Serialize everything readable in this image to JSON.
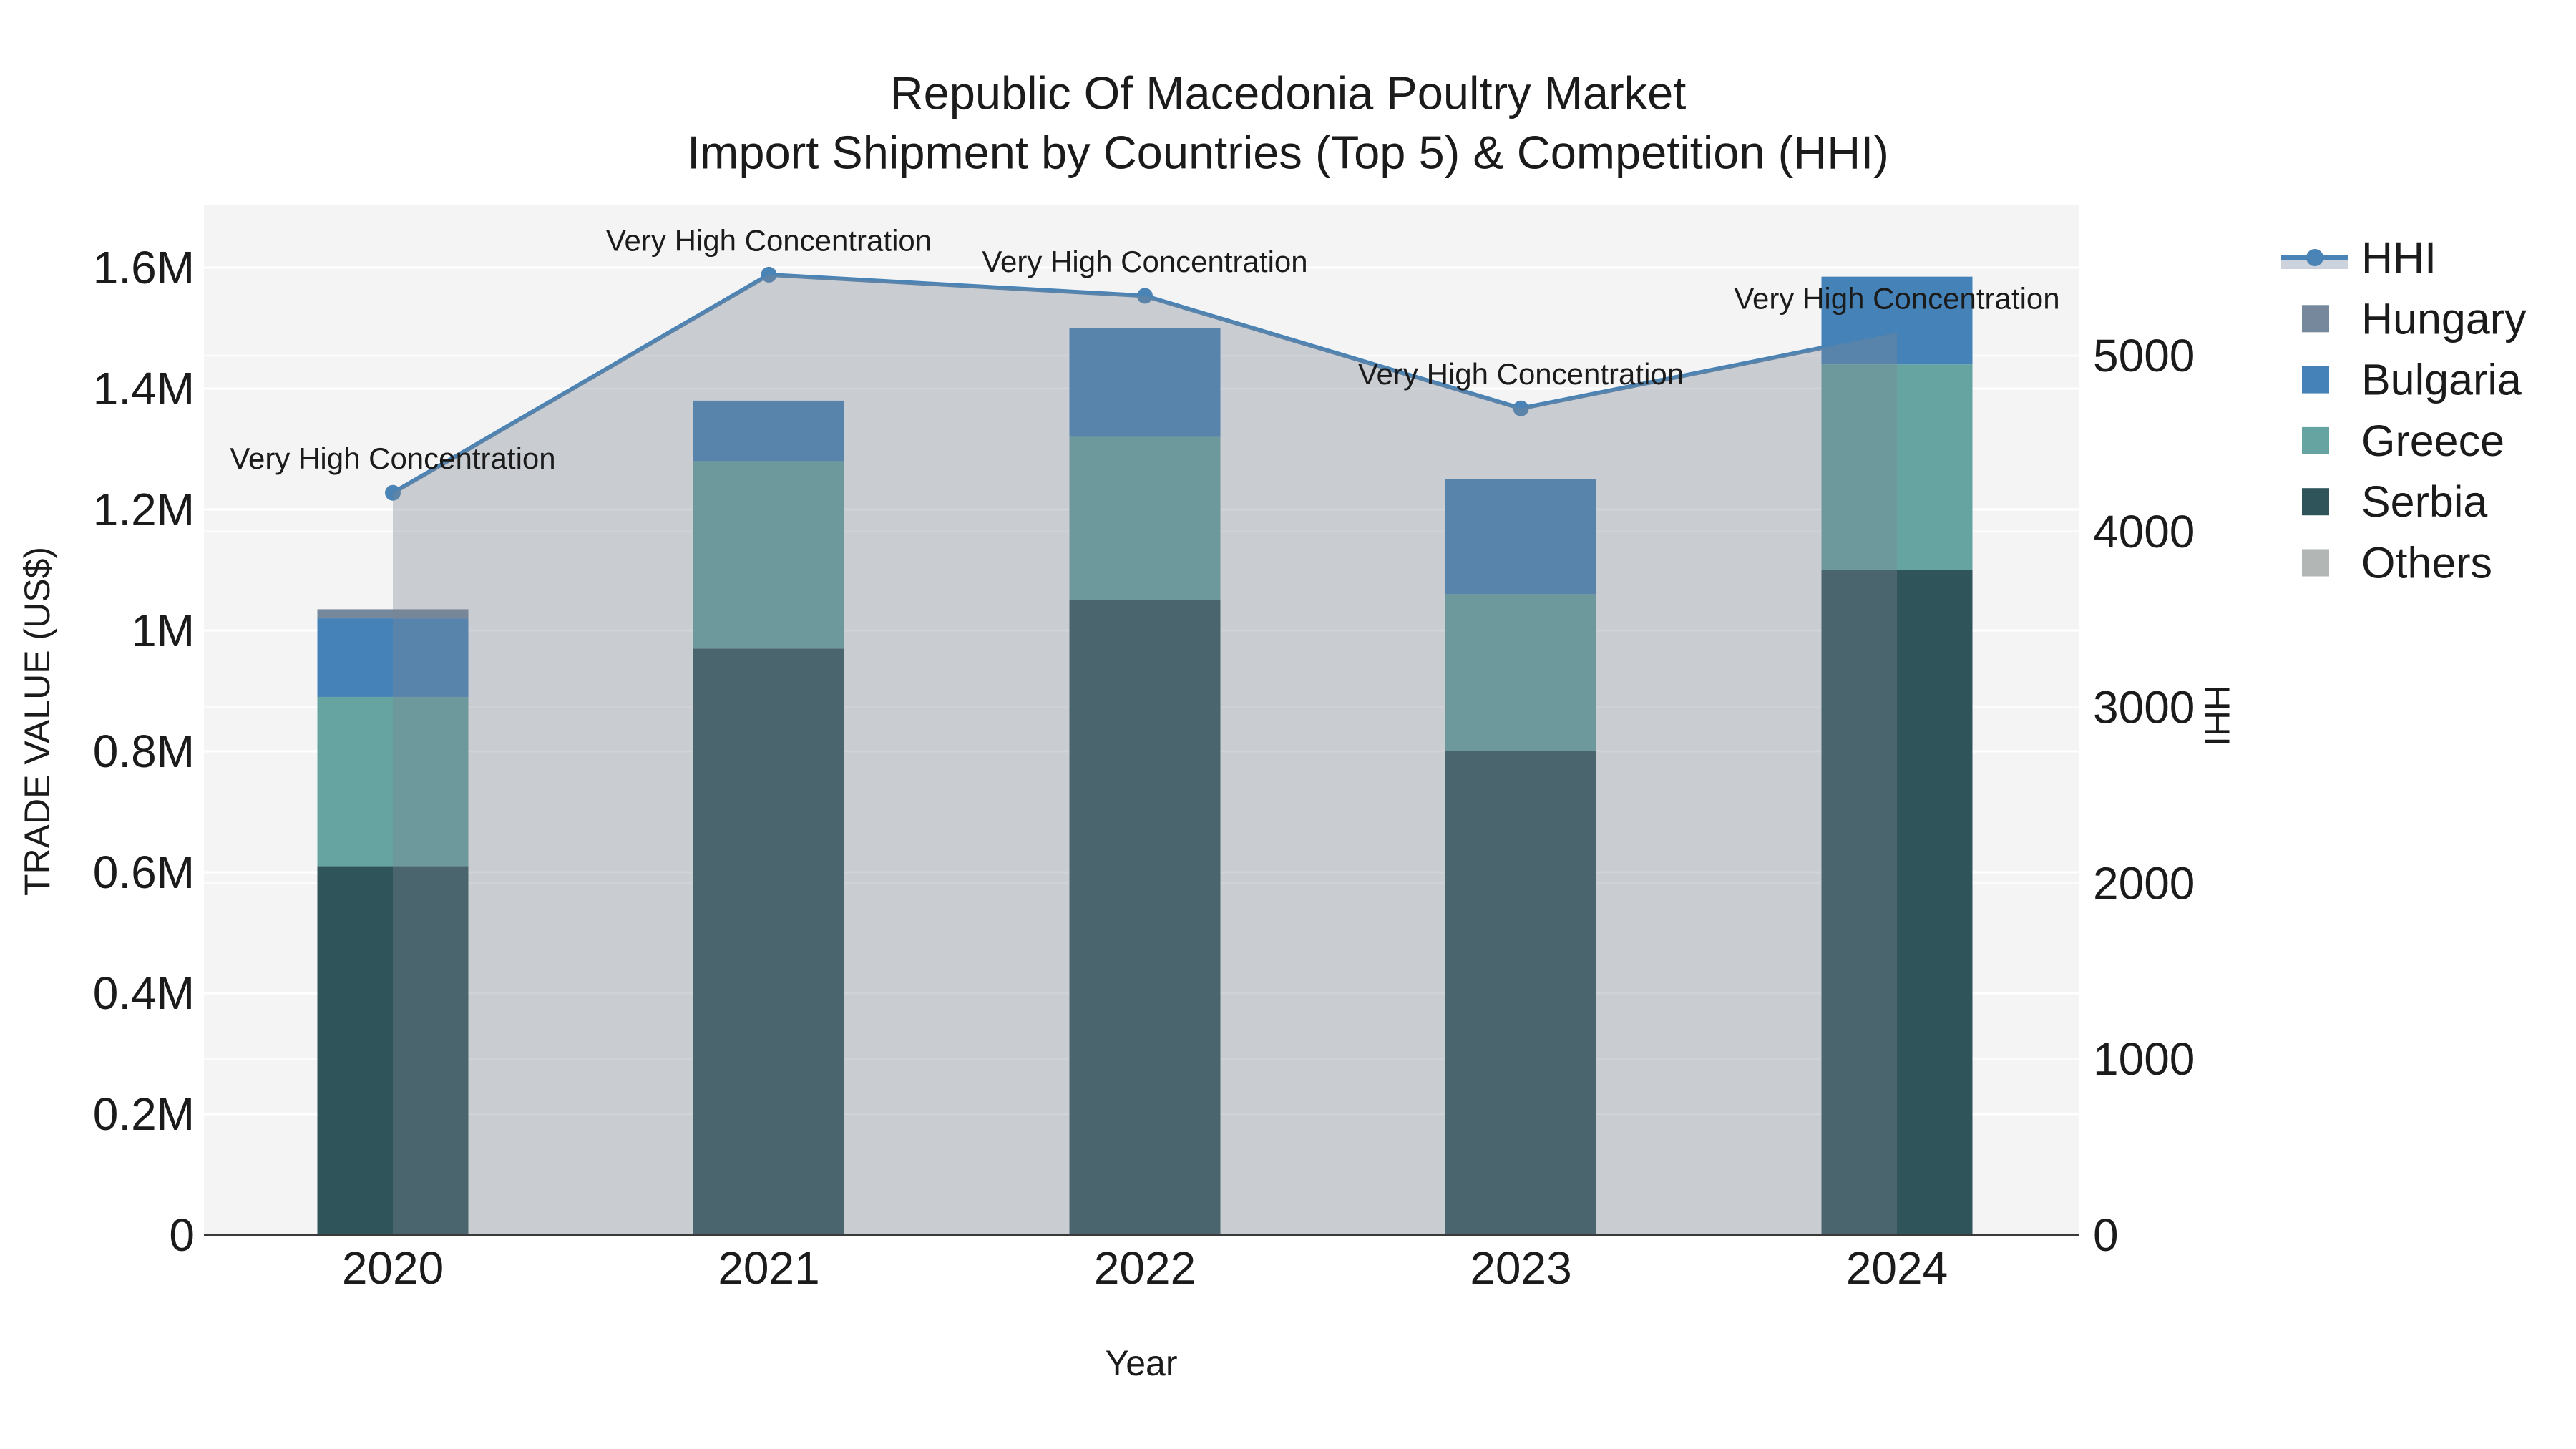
{
  "chart_data": {
    "type": "bar",
    "subtype": "stacked-bars-with-line-area-overlay",
    "title_line1": "Republic Of Macedonia Poultry Market",
    "title_line2": "Import Shipment by Countries (Top 5) & Competition (HHI)",
    "xlabel": "Year",
    "ylabel_left": "TRADE VALUE (US$)",
    "ylabel_right": "HHI",
    "categories": [
      "2020",
      "2021",
      "2022",
      "2023",
      "2024"
    ],
    "series": [
      {
        "name": "Serbia",
        "color": "#2f5459",
        "values": [
          610000,
          970000,
          1050000,
          800000,
          1100000
        ]
      },
      {
        "name": "Greece",
        "color": "#66a4a1",
        "values": [
          280000,
          310000,
          270000,
          260000,
          340000
        ]
      },
      {
        "name": "Bulgaria",
        "color": "#4482b7",
        "values": [
          130000,
          100000,
          180000,
          190000,
          145000
        ]
      },
      {
        "name": "Hungary",
        "color": "#76889b",
        "values": [
          15000,
          0,
          0,
          0,
          0
        ]
      },
      {
        "name": "Others",
        "color": "#b2b6b5",
        "values": [
          0,
          0,
          0,
          0,
          0
        ]
      }
    ],
    "hhi": {
      "name": "HHI",
      "values": [
        4220,
        5460,
        5340,
        4700,
        5130
      ],
      "line_color": "#4a83b5",
      "area_color": "#7c8494",
      "area_opacity": 0.36
    },
    "annotations": [
      {
        "category": "2020",
        "text": "Very High Concentration"
      },
      {
        "category": "2021",
        "text": "Very High Concentration"
      },
      {
        "category": "2022",
        "text": "Very High Concentration"
      },
      {
        "category": "2023",
        "text": "Very High Concentration"
      },
      {
        "category": "2024",
        "text": "Very High Concentration"
      }
    ],
    "y_left_axis": {
      "tick_labels": [
        "0",
        "0.2M",
        "0.4M",
        "0.6M",
        "0.8M",
        "1M",
        "1.2M",
        "1.4M",
        "1.6M"
      ],
      "tick_values": [
        0,
        200000,
        400000,
        600000,
        800000,
        1000000,
        1200000,
        1400000,
        1600000
      ],
      "range": [
        0,
        1703000
      ]
    },
    "y_right_axis": {
      "tick_labels": [
        "0",
        "1000",
        "2000",
        "3000",
        "4000",
        "5000"
      ],
      "tick_values": [
        0,
        1000,
        2000,
        3000,
        4000,
        5000
      ],
      "range": [
        0,
        5854
      ]
    },
    "legend": {
      "position": "right",
      "items": [
        {
          "label": "HHI",
          "type": "line",
          "color": "#4a83b5",
          "underlay_color": "#ccd3dd"
        },
        {
          "label": "Hungary",
          "type": "swatch",
          "color": "#76889b"
        },
        {
          "label": "Bulgaria",
          "type": "swatch",
          "color": "#4482b7"
        },
        {
          "label": "Greece",
          "type": "swatch",
          "color": "#66a4a1"
        },
        {
          "label": "Serbia",
          "type": "swatch",
          "color": "#2f5459"
        },
        {
          "label": "Others",
          "type": "swatch",
          "color": "#b2b6b5"
        }
      ]
    },
    "style": {
      "figure_background": "#ffffff",
      "plot_background": "#f4f4f5",
      "grid_color": "#ffffff",
      "spine_color": "#3a3a3a",
      "text_color": "#1b1b1b"
    },
    "grid": true
  }
}
